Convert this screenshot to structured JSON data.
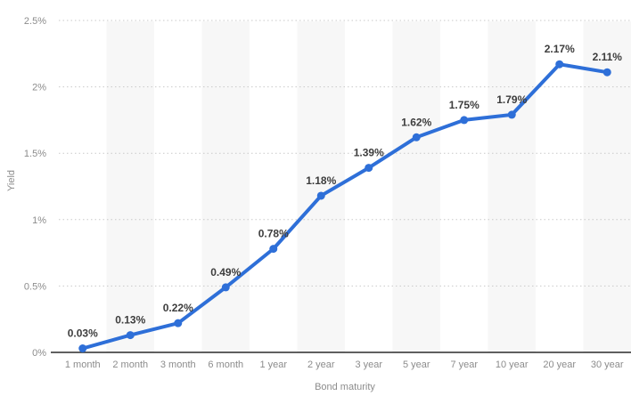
{
  "chart_data": {
    "type": "line",
    "title": "",
    "categories": [
      "1 month",
      "2 month",
      "3 month",
      "6 month",
      "1 year",
      "2 year",
      "3 year",
      "5 year",
      "7 year",
      "10 year",
      "20 year",
      "30 year"
    ],
    "values": [
      0.03,
      0.13,
      0.22,
      0.49,
      0.78,
      1.18,
      1.39,
      1.62,
      1.75,
      1.79,
      2.17,
      2.11
    ],
    "point_labels": [
      "0.03%",
      "0.13%",
      "0.22%",
      "0.49%",
      "0.78%",
      "1.18%",
      "1.39%",
      "1.62%",
      "1.75%",
      "1.79%",
      "2.17%",
      "2.11%"
    ],
    "xlabel": "Bond maturity",
    "ylabel": "Yield",
    "ylim": [
      0,
      2.5
    ],
    "y_ticks": [
      {
        "value": 0,
        "label": "0%"
      },
      {
        "value": 0.5,
        "label": "0.5%"
      },
      {
        "value": 1,
        "label": "1%"
      },
      {
        "value": 1.5,
        "label": "1.5%"
      },
      {
        "value": 2,
        "label": "2%"
      },
      {
        "value": 2.5,
        "label": "2.5%"
      }
    ],
    "grid": "horizontal-dotted",
    "legend_position": "none",
    "band_pattern": "alternating columns, even columns shaded",
    "colors": {
      "line": "#2e6fd8",
      "marker": "#2e6fd8",
      "band": "#f7f7f7",
      "gridline": "#c9c9c9",
      "axis_line": "#2b2b2b",
      "tick_label": "#8c8c8c",
      "axis_title": "#8c8c8c",
      "data_label": "#3d3d3d",
      "background": "#ffffff"
    }
  }
}
